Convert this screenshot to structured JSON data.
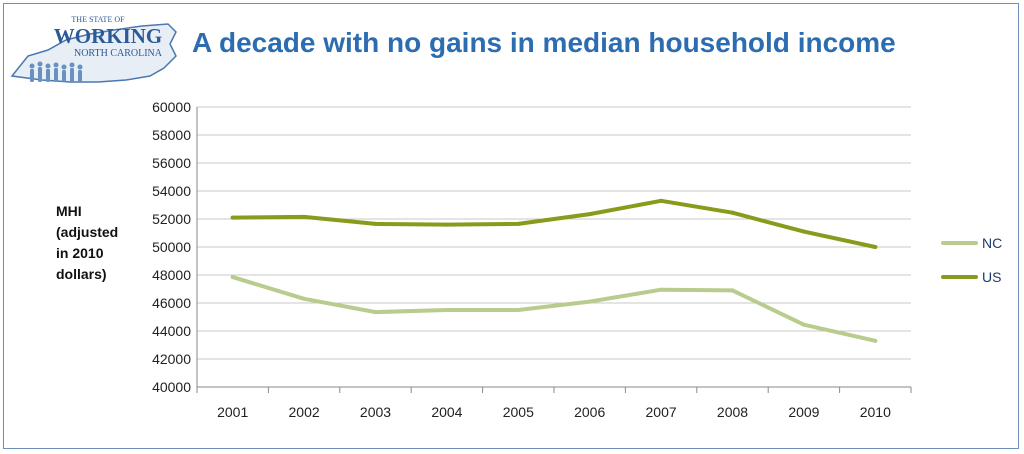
{
  "logo": {
    "line1": "THE STATE OF",
    "line2": "WORKING",
    "line3": "NORTH CAROLINA"
  },
  "chart_data": {
    "type": "line",
    "title": "A decade with no gains in median household income",
    "ylabel_lines": [
      "MHI",
      "(adjusted",
      "in 2010",
      "dollars)"
    ],
    "xlabel": "",
    "x": [
      "2001",
      "2002",
      "2003",
      "2004",
      "2005",
      "2006",
      "2007",
      "2008",
      "2009",
      "2010"
    ],
    "ylim": [
      40000,
      60000
    ],
    "ytick_step": 2000,
    "grid": true,
    "legend_position": "right",
    "series": [
      {
        "name": "NC",
        "color": "#b8cc8e",
        "values": [
          47850,
          46300,
          45350,
          45500,
          45500,
          46100,
          46950,
          46900,
          44450,
          43300
        ]
      },
      {
        "name": "US",
        "color": "#8a9a1c",
        "values": [
          52100,
          52150,
          51650,
          51600,
          51650,
          52350,
          53300,
          52450,
          51100,
          50000
        ]
      }
    ]
  }
}
